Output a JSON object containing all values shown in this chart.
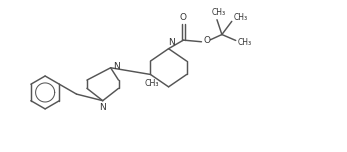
{
  "bg_color": "#ffffff",
  "line_color": "#555555",
  "text_color": "#333333",
  "line_width": 1.05,
  "font_size": 6.0,
  "fig_width": 3.47,
  "fig_height": 1.52,
  "dpi": 100,
  "xlim": [
    0.0,
    10.5
  ],
  "ylim": [
    0.5,
    4.8
  ]
}
